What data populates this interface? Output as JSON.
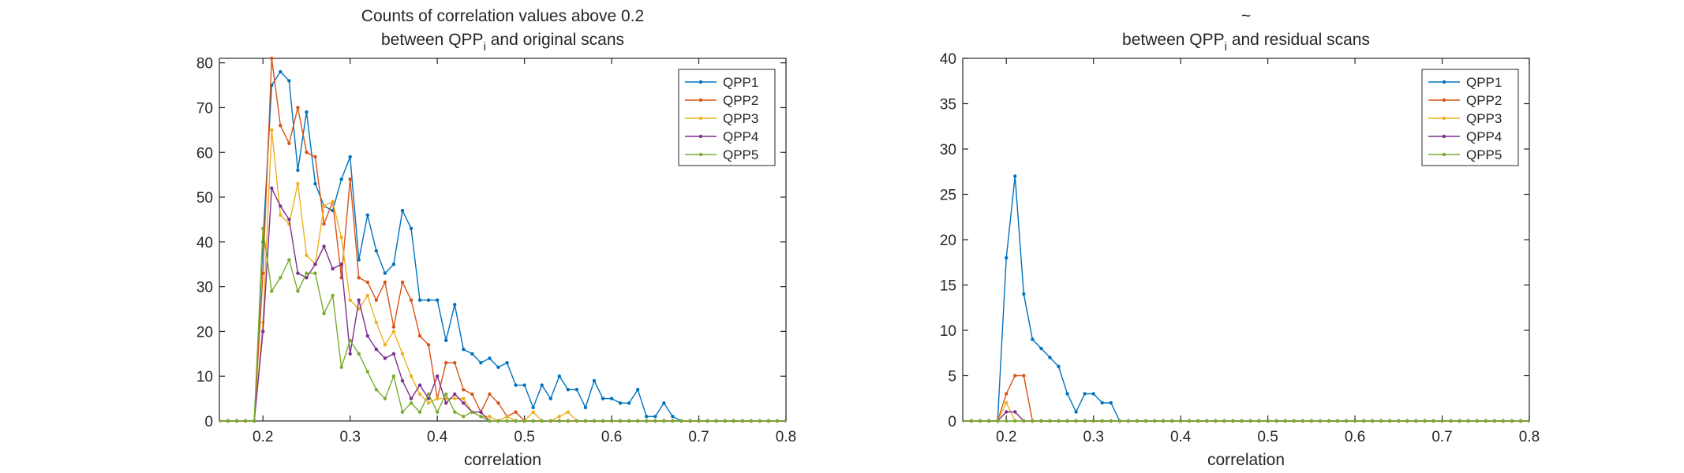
{
  "chart_data": [
    {
      "type": "line",
      "title_line1": "Counts of correlation values above 0.2",
      "title_line2_prefix": "between QPP",
      "title_line2_sub": "i",
      "title_line2_suffix": " and original scans",
      "xlabel": "correlation",
      "ylabel": "",
      "xlim": [
        0.15,
        0.8
      ],
      "ylim": [
        0,
        81
      ],
      "xticks": [
        0.2,
        0.3,
        0.4,
        0.5,
        0.6,
        0.7,
        0.8
      ],
      "xtick_labels": [
        "0.2",
        "0.3",
        "0.4",
        "0.5",
        "0.6",
        "0.7",
        "0.8"
      ],
      "yticks": [
        0,
        10,
        20,
        30,
        40,
        50,
        60,
        70,
        80
      ],
      "ytick_labels": [
        "0",
        "10",
        "20",
        "30",
        "40",
        "50",
        "60",
        "70",
        "80"
      ],
      "grid": false,
      "legend_position": "top-right",
      "x": [
        0.15,
        0.16,
        0.17,
        0.18,
        0.19,
        0.2,
        0.21,
        0.22,
        0.23,
        0.24,
        0.25,
        0.26,
        0.27,
        0.28,
        0.29,
        0.3,
        0.31,
        0.32,
        0.33,
        0.34,
        0.35,
        0.36,
        0.37,
        0.38,
        0.39,
        0.4,
        0.41,
        0.42,
        0.43,
        0.44,
        0.45,
        0.46,
        0.47,
        0.48,
        0.49,
        0.5,
        0.51,
        0.52,
        0.53,
        0.54,
        0.55,
        0.56,
        0.57,
        0.58,
        0.59,
        0.6,
        0.61,
        0.62,
        0.63,
        0.64,
        0.65,
        0.66,
        0.67,
        0.68,
        0.69,
        0.7,
        0.71,
        0.72,
        0.73,
        0.74,
        0.75,
        0.76,
        0.77,
        0.78,
        0.79,
        0.8
      ],
      "series": [
        {
          "name": "QPP1",
          "color": "#0072BD",
          "values": [
            0,
            0,
            0,
            0,
            0,
            40,
            75,
            78,
            76,
            56,
            69,
            53,
            48,
            47,
            54,
            59,
            36,
            46,
            38,
            33,
            35,
            47,
            43,
            27,
            27,
            27,
            18,
            26,
            16,
            15,
            13,
            14,
            12,
            13,
            8,
            8,
            3,
            8,
            5,
            10,
            7,
            7,
            3,
            9,
            5,
            5,
            4,
            4,
            7,
            1,
            1,
            4,
            1,
            0,
            0,
            0,
            0,
            0,
            0,
            0,
            0,
            0,
            0,
            0,
            0,
            0
          ]
        },
        {
          "name": "QPP2",
          "color": "#D95319",
          "values": [
            0,
            0,
            0,
            0,
            0,
            33,
            81,
            66,
            62,
            70,
            60,
            59,
            44,
            49,
            32,
            54,
            32,
            31,
            27,
            31,
            21,
            31,
            27,
            19,
            17,
            5,
            13,
            13,
            7,
            6,
            2,
            6,
            4,
            1,
            2,
            0,
            0,
            0,
            0,
            0,
            0,
            0,
            0,
            0,
            0,
            0,
            0,
            0,
            0,
            0,
            0,
            0,
            0,
            0,
            0,
            0,
            0,
            0,
            0,
            0,
            0,
            0,
            0,
            0,
            0,
            0
          ]
        },
        {
          "name": "QPP3",
          "color": "#EDB120",
          "values": [
            0,
            0,
            0,
            0,
            0,
            22,
            65,
            46,
            44,
            53,
            37,
            35,
            48,
            49,
            41,
            27,
            25,
            28,
            22,
            17,
            20,
            15,
            10,
            6,
            4,
            5,
            5,
            5,
            5,
            2,
            1,
            1,
            0,
            1,
            0,
            0,
            2,
            0,
            0,
            1,
            2,
            0,
            0,
            0,
            0,
            0,
            0,
            0,
            0,
            0,
            0,
            0,
            0,
            0,
            0,
            0,
            0,
            0,
            0,
            0,
            0,
            0,
            0,
            0,
            0,
            0
          ]
        },
        {
          "name": "QPP4",
          "color": "#7E2F8E",
          "values": [
            0,
            0,
            0,
            0,
            0,
            20,
            52,
            48,
            45,
            33,
            32,
            35,
            39,
            34,
            35,
            15,
            27,
            19,
            16,
            14,
            15,
            9,
            5,
            8,
            5,
            10,
            4,
            6,
            4,
            2,
            2,
            0,
            0,
            0,
            0,
            0,
            0,
            0,
            0,
            0,
            0,
            0,
            0,
            0,
            0,
            0,
            0,
            0,
            0,
            0,
            0,
            0,
            0,
            0,
            0,
            0,
            0,
            0,
            0,
            0,
            0,
            0,
            0,
            0,
            0,
            0
          ]
        },
        {
          "name": "QPP5",
          "color": "#77AC30",
          "values": [
            0,
            0,
            0,
            0,
            0,
            43,
            29,
            32,
            36,
            29,
            33,
            33,
            24,
            28,
            12,
            18,
            15,
            11,
            7,
            5,
            10,
            2,
            4,
            2,
            6,
            2,
            6,
            2,
            1,
            2,
            1,
            0,
            0,
            0,
            0,
            0,
            0,
            0,
            0,
            0,
            0,
            0,
            0,
            0,
            0,
            0,
            0,
            0,
            0,
            0,
            0,
            0,
            0,
            0,
            0,
            0,
            0,
            0,
            0,
            0,
            0,
            0,
            0,
            0,
            0,
            0
          ]
        }
      ]
    },
    {
      "type": "line",
      "title_line1": "~",
      "title_line2_prefix": "between QPP",
      "title_line2_sub": "i",
      "title_line2_suffix": " and residual scans",
      "xlabel": "correlation",
      "ylabel": "",
      "xlim": [
        0.15,
        0.8
      ],
      "ylim": [
        0,
        40
      ],
      "xticks": [
        0.2,
        0.3,
        0.4,
        0.5,
        0.6,
        0.7,
        0.8
      ],
      "xtick_labels": [
        "0.2",
        "0.3",
        "0.4",
        "0.5",
        "0.6",
        "0.7",
        "0.8"
      ],
      "yticks": [
        0,
        5,
        10,
        15,
        20,
        25,
        30,
        35,
        40
      ],
      "ytick_labels": [
        "0",
        "5",
        "10",
        "15",
        "20",
        "25",
        "30",
        "35",
        "40"
      ],
      "grid": false,
      "legend_position": "top-right",
      "x": [
        0.15,
        0.16,
        0.17,
        0.18,
        0.19,
        0.2,
        0.21,
        0.22,
        0.23,
        0.24,
        0.25,
        0.26,
        0.27,
        0.28,
        0.29,
        0.3,
        0.31,
        0.32,
        0.33,
        0.34,
        0.35,
        0.36,
        0.37,
        0.38,
        0.39,
        0.4,
        0.41,
        0.42,
        0.43,
        0.44,
        0.45,
        0.46,
        0.47,
        0.48,
        0.49,
        0.5,
        0.51,
        0.52,
        0.53,
        0.54,
        0.55,
        0.56,
        0.57,
        0.58,
        0.59,
        0.6,
        0.61,
        0.62,
        0.63,
        0.64,
        0.65,
        0.66,
        0.67,
        0.68,
        0.69,
        0.7,
        0.71,
        0.72,
        0.73,
        0.74,
        0.75,
        0.76,
        0.77,
        0.78,
        0.79,
        0.8
      ],
      "series": [
        {
          "name": "QPP1",
          "color": "#0072BD",
          "values": [
            0,
            0,
            0,
            0,
            0,
            18,
            27,
            14,
            9,
            8,
            7,
            6,
            3,
            1,
            3,
            3,
            2,
            2,
            0,
            0,
            0,
            0,
            0,
            0,
            0,
            0,
            0,
            0,
            0,
            0,
            0,
            0,
            0,
            0,
            0,
            0,
            0,
            0,
            0,
            0,
            0,
            0,
            0,
            0,
            0,
            0,
            0,
            0,
            0,
            0,
            0,
            0,
            0,
            0,
            0,
            0,
            0,
            0,
            0,
            0,
            0,
            0,
            0,
            0,
            0,
            0
          ]
        },
        {
          "name": "QPP2",
          "color": "#D95319",
          "values": [
            0,
            0,
            0,
            0,
            0,
            3,
            5,
            5,
            0,
            0,
            0,
            0,
            0,
            0,
            0,
            0,
            0,
            0,
            0,
            0,
            0,
            0,
            0,
            0,
            0,
            0,
            0,
            0,
            0,
            0,
            0,
            0,
            0,
            0,
            0,
            0,
            0,
            0,
            0,
            0,
            0,
            0,
            0,
            0,
            0,
            0,
            0,
            0,
            0,
            0,
            0,
            0,
            0,
            0,
            0,
            0,
            0,
            0,
            0,
            0,
            0,
            0,
            0,
            0,
            0,
            0
          ]
        },
        {
          "name": "QPP3",
          "color": "#EDB120",
          "values": [
            0,
            0,
            0,
            0,
            0,
            2,
            0,
            0,
            0,
            0,
            0,
            0,
            0,
            0,
            0,
            0,
            0,
            0,
            0,
            0,
            0,
            0,
            0,
            0,
            0,
            0,
            0,
            0,
            0,
            0,
            0,
            0,
            0,
            0,
            0,
            0,
            0,
            0,
            0,
            0,
            0,
            0,
            0,
            0,
            0,
            0,
            0,
            0,
            0,
            0,
            0,
            0,
            0,
            0,
            0,
            0,
            0,
            0,
            0,
            0,
            0,
            0,
            0,
            0,
            0,
            0
          ]
        },
        {
          "name": "QPP4",
          "color": "#7E2F8E",
          "values": [
            0,
            0,
            0,
            0,
            0,
            1,
            1,
            0,
            0,
            0,
            0,
            0,
            0,
            0,
            0,
            0,
            0,
            0,
            0,
            0,
            0,
            0,
            0,
            0,
            0,
            0,
            0,
            0,
            0,
            0,
            0,
            0,
            0,
            0,
            0,
            0,
            0,
            0,
            0,
            0,
            0,
            0,
            0,
            0,
            0,
            0,
            0,
            0,
            0,
            0,
            0,
            0,
            0,
            0,
            0,
            0,
            0,
            0,
            0,
            0,
            0,
            0,
            0,
            0,
            0,
            0
          ]
        },
        {
          "name": "QPP5",
          "color": "#77AC30",
          "values": [
            0,
            0,
            0,
            0,
            0,
            0,
            0,
            0,
            0,
            0,
            0,
            0,
            0,
            0,
            0,
            0,
            0,
            0,
            0,
            0,
            0,
            0,
            0,
            0,
            0,
            0,
            0,
            0,
            0,
            0,
            0,
            0,
            0,
            0,
            0,
            0,
            0,
            0,
            0,
            0,
            0,
            0,
            0,
            0,
            0,
            0,
            0,
            0,
            0,
            0,
            0,
            0,
            0,
            0,
            0,
            0,
            0,
            0,
            0,
            0,
            0,
            0,
            0,
            0,
            0,
            0
          ]
        }
      ]
    }
  ]
}
